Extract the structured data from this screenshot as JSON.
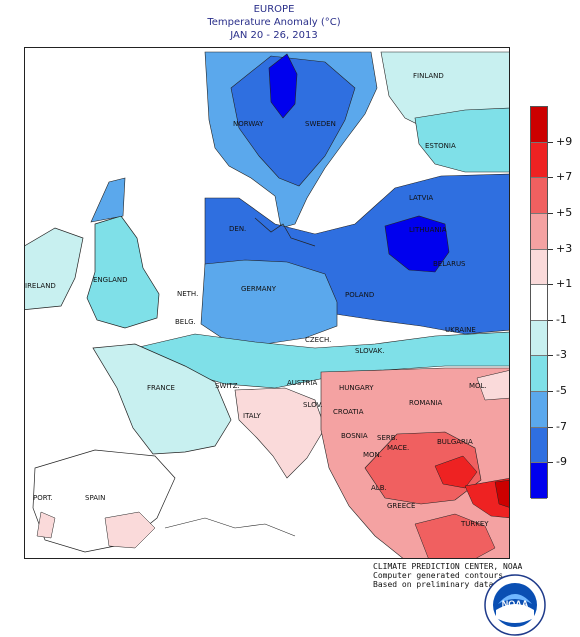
{
  "header": {
    "region": "EUROPE",
    "subtitle": "Temperature Anomaly (°C)",
    "period": "JAN 20 - 26, 2013"
  },
  "legend": {
    "labels": [
      "+9",
      "+7",
      "+5",
      "+3",
      "+1",
      "-1",
      "-3",
      "-5",
      "-7",
      "-9"
    ],
    "colors": [
      "#cc0000",
      "#ee2222",
      "#f06060",
      "#f4a2a2",
      "#fadada",
      "#ffffff",
      "#c8f0f0",
      "#7fe0e8",
      "#5ba8ec",
      "#2f6fe0",
      "#0000ee"
    ]
  },
  "country_labels": {
    "finland": "FINLAND",
    "norway": "NORWAY",
    "sweden": "SWEDEN",
    "estonia": "ESTONIA",
    "latvia": "LATVIA",
    "lithuania": "LITHUANIA",
    "belarus": "BELARUS",
    "denmark": "DEN.",
    "ireland": "IRELAND",
    "england": "ENGLAND",
    "netherlands": "NETH.",
    "germany": "GERMANY",
    "poland": "POLAND",
    "belgium": "BELG.",
    "czech": "CZECH.",
    "ukraine": "UKRAINE",
    "slovakia": "SLOVAK.",
    "france": "FRANCE",
    "switzerland": "SWITZ.",
    "austria": "AUSTRIA",
    "hungary": "HUNGARY",
    "moldova": "MOL.",
    "romania": "ROMANIA",
    "slovenia": "SLOV.",
    "croatia": "CROATIA",
    "italy": "ITALY",
    "bosnia": "BOSNIA",
    "serbia": "SERB.",
    "bulgaria": "BULGARIA",
    "montenegro": "MON.",
    "macedonia": "MACE.",
    "portugal": "PORT.",
    "spain": "SPAIN",
    "albania": "ALB.",
    "greece": "GREECE",
    "turkey": "TURKEY"
  },
  "credit": {
    "line1": "CLIMATE PREDICTION CENTER, NOAA",
    "line2": "Computer generated contours",
    "line3": "Based on preliminary data"
  },
  "logo": {
    "text": "NOAA"
  }
}
